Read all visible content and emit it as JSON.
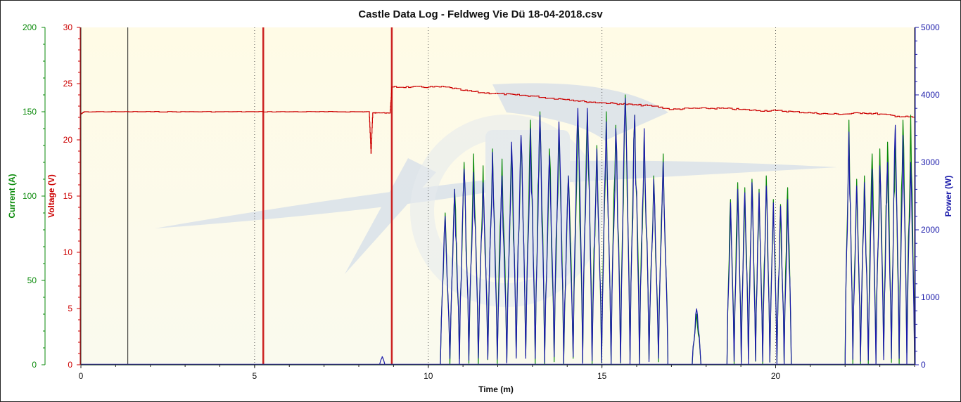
{
  "chart_data": {
    "type": "line",
    "title": "Castle Data Log - Feldweg Vie Dü 18-04-2018.csv",
    "xlabel": "Time (m)",
    "xlim": [
      0,
      24
    ],
    "x_ticks": [
      "0",
      "5",
      "10",
      "15",
      "20"
    ],
    "x_tick_values": [
      0,
      5,
      10,
      15,
      20
    ],
    "grid": "vertical dotted at major x ticks",
    "axes": {
      "current": {
        "label": "Current (A)",
        "lim": [
          0,
          200
        ],
        "ticks": [
          "0",
          "50",
          "100",
          "150",
          "200"
        ],
        "tick_values": [
          0,
          50,
          100,
          150,
          200
        ],
        "color": "#0a8a0a"
      },
      "voltage": {
        "label": "Voltage (V)",
        "lim": [
          0,
          30
        ],
        "ticks": [
          "0",
          "5",
          "10",
          "15",
          "20",
          "25",
          "30"
        ],
        "tick_values": [
          0,
          5,
          10,
          15,
          20,
          25,
          30
        ],
        "color": "#cc0000"
      },
      "power": {
        "label": "Power (W)",
        "lim": [
          0,
          5000
        ],
        "ticks": [
          "0",
          "1000",
          "2000",
          "3000",
          "4000",
          "5000"
        ],
        "tick_values": [
          0,
          1000,
          2000,
          3000,
          4000,
          5000
        ],
        "color": "#1a1aaa"
      }
    },
    "markers": {
      "black_lines_x": [
        1.35
      ],
      "red_lines_x": [
        5.25,
        8.95
      ]
    },
    "series": [
      {
        "axis": "voltage",
        "color": "#cc0000",
        "x": [
          0,
          0.1,
          1,
          2,
          3,
          4,
          5,
          6,
          7,
          8,
          8.3,
          8.35,
          8.4,
          8.5,
          8.9,
          8.95,
          9.5,
          10,
          10.5,
          11,
          11.5,
          12,
          12.5,
          13,
          13.5,
          14,
          14.5,
          15,
          15.5,
          16,
          16.5,
          17,
          17.5,
          18,
          18.5,
          19,
          19.5,
          20,
          20.5,
          21,
          21.5,
          22,
          22.5,
          23,
          23.5,
          24
        ],
        "values": [
          22.3,
          22.5,
          22.5,
          22.5,
          22.5,
          22.5,
          22.5,
          22.5,
          22.5,
          22.5,
          22.5,
          18.8,
          22.4,
          22.4,
          22.4,
          24.7,
          24.7,
          24.7,
          24.7,
          24.4,
          24.2,
          24.1,
          24.0,
          23.9,
          23.7,
          23.6,
          23.4,
          23.3,
          23.2,
          23.1,
          23.0,
          22.7,
          22.8,
          22.8,
          22.8,
          22.7,
          22.6,
          22.6,
          22.5,
          22.4,
          22.3,
          22.3,
          22.4,
          22.3,
          22.1,
          22.0
        ]
      },
      {
        "axis": "current",
        "color": "#0a8a0a",
        "bursts": [
          {
            "start": 10.35,
            "end": 16.9,
            "peaks": [
              90,
              104,
              120,
              125,
              118,
              128,
              122,
              130,
              135,
              145,
              150,
              128,
              140,
              112,
              148,
              150,
              130,
              150,
              142,
              160,
              148,
              138,
              112,
              125
            ]
          },
          {
            "start": 17.6,
            "end": 17.85,
            "peaks": [
              30
            ]
          },
          {
            "start": 18.6,
            "end": 20.45,
            "peaks": [
              98,
              108,
              105,
              110,
              104,
              112,
              98,
              95,
              105
            ]
          },
          {
            "start": 22.0,
            "end": 24.0,
            "peaks": [
              145,
              110,
              112,
              125,
              128,
              132,
              140,
              145,
              148
            ]
          }
        ]
      },
      {
        "axis": "power",
        "color": "#1a1aaa",
        "bursts": [
          {
            "start": 8.6,
            "end": 8.75,
            "peaks": [
              120
            ]
          },
          {
            "start": 10.35,
            "end": 16.9,
            "peaks": [
              2200,
              2600,
              2900,
              2850,
              2700,
              3150,
              2800,
              3300,
              3400,
              3500,
              3700,
              3100,
              3600,
              2800,
              3800,
              3800,
              3200,
              3600,
              3500,
              3950,
              3700,
              3500,
              2750,
              3000
            ]
          },
          {
            "start": 17.6,
            "end": 17.85,
            "peaks": [
              830
            ]
          },
          {
            "start": 18.6,
            "end": 20.45,
            "peaks": [
              2400,
              2600,
              2550,
              2700,
              2550,
              2650,
              2400,
              2350,
              2450
            ]
          },
          {
            "start": 22.0,
            "end": 24.0,
            "peaks": [
              3450,
              2650,
              2700,
              2900,
              2950,
              3000,
              3550,
              3400,
              3000
            ]
          }
        ]
      }
    ]
  }
}
